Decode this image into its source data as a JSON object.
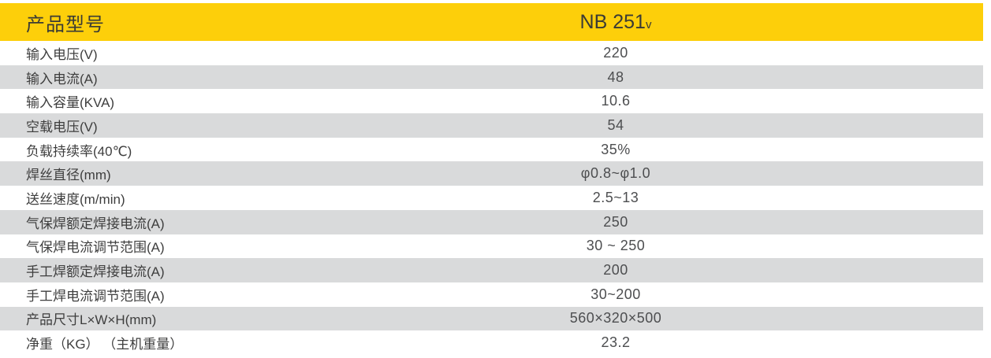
{
  "table": {
    "header": {
      "label": "产品型号",
      "model_main": "NB 251",
      "model_sub": "v"
    },
    "rows": [
      {
        "label": "输入电压(V)",
        "value": "220"
      },
      {
        "label": "输入电流(A)",
        "value": "48"
      },
      {
        "label": "输入容量(KVA)",
        "value": "10.6"
      },
      {
        "label": "空载电压(V)",
        "value": "54"
      },
      {
        "label": "负载持续率(40℃)",
        "value": "35%"
      },
      {
        "label": "焊丝直径(mm)",
        "value": "φ0.8~φ1.0"
      },
      {
        "label": "送丝速度(m/min)",
        "value": "2.5~13"
      },
      {
        "label": "气保焊额定焊接电流(A)",
        "value": "250"
      },
      {
        "label": "气保焊电流调节范围(A)",
        "value": "30 ~ 250"
      },
      {
        "label": "手工焊额定焊接电流(A)",
        "value": "200"
      },
      {
        "label": "手工焊电流调节范围(A)",
        "value": "30~200"
      },
      {
        "label": "产品尺寸L×W×H(mm)",
        "value": "560×320×500"
      },
      {
        "label": "净重（KG） （主机重量）",
        "value": "23.2"
      }
    ],
    "colors": {
      "header_background": "#FDCF0A",
      "alternate_row_background": "#D9DADB",
      "header_text": "#3A3B35",
      "label_text": "#3E3E3E",
      "value_text": "#4D4E50"
    }
  }
}
